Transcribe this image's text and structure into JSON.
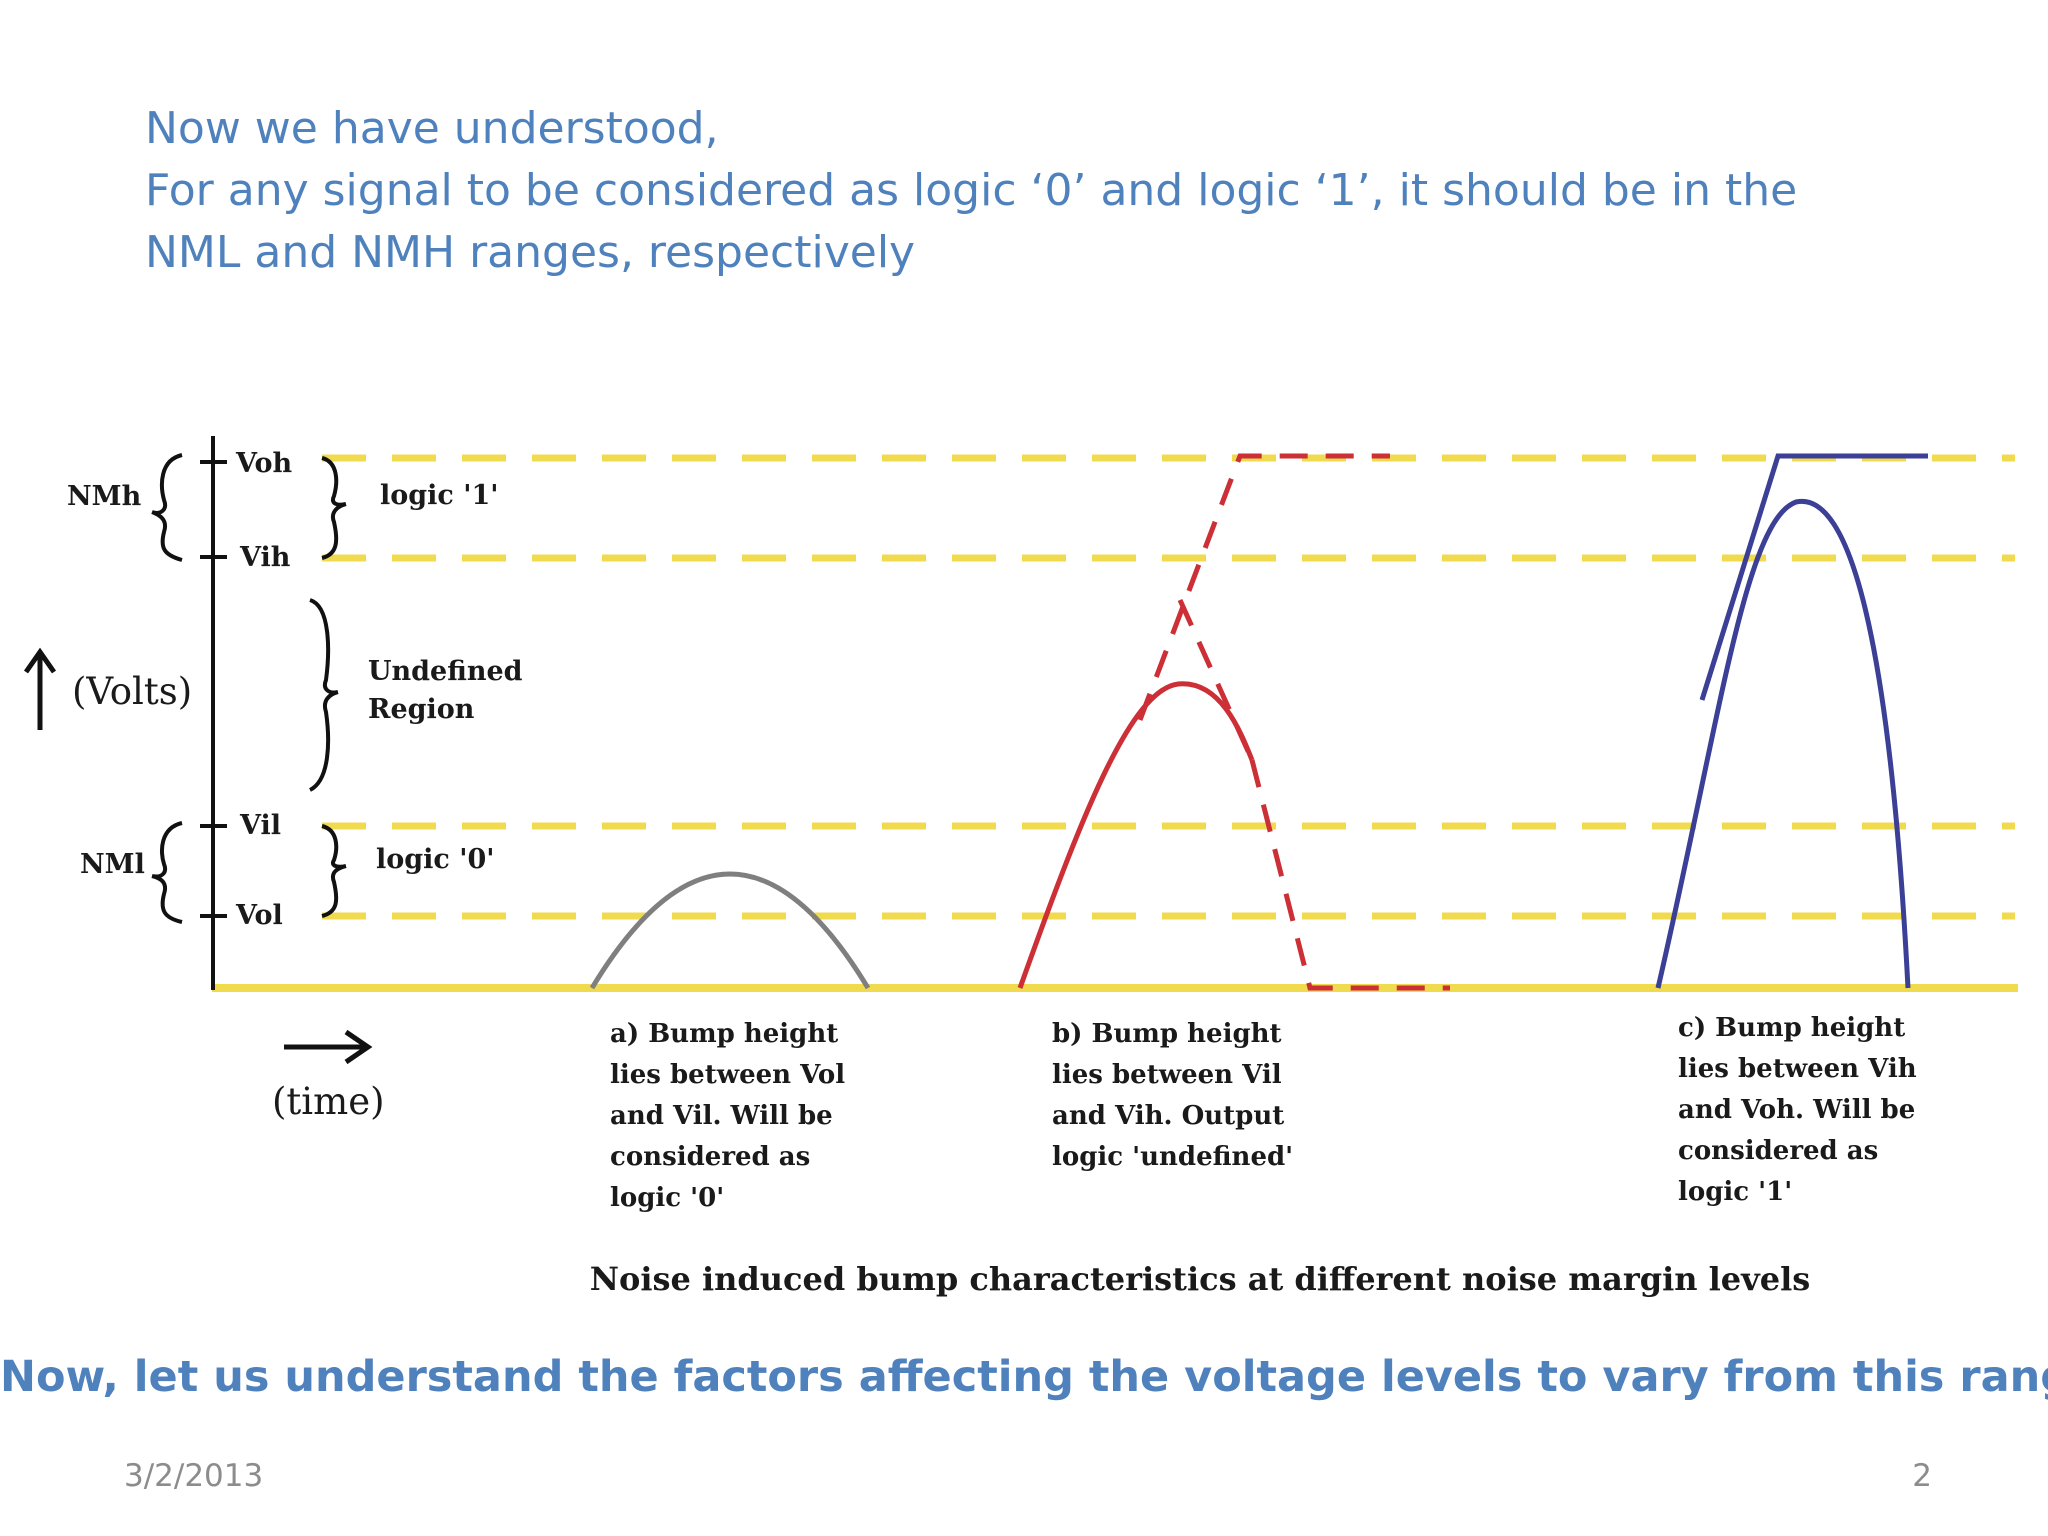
{
  "intro": {
    "line1": "Now we have understood,",
    "line2": "For any signal to be considered as logic ‘0’ and logic ‘1’, it should be in the",
    "line3": "NML and NMH ranges, respectively"
  },
  "diagram": {
    "axis_labels": {
      "volts": "(Volts)",
      "time": "(time)"
    },
    "level_labels": {
      "voh": "Voh",
      "vih": "Vih",
      "vil": "Vil",
      "vol": "Vol"
    },
    "margin_labels": {
      "nmh": "NMh",
      "nml": "NMl"
    },
    "region_labels": {
      "logic1": "logic '1'",
      "undefined_line1": "Undefined",
      "undefined_line2": "Region",
      "logic0": "logic '0'"
    },
    "captions": {
      "a": [
        "a) Bump height",
        "lies between Vol",
        "and Vil. Will be",
        "considered as",
        "logic '0'"
      ],
      "b": [
        "b) Bump height",
        "lies between Vil",
        "and Vih. Output",
        "logic 'undefined'"
      ],
      "c": [
        "c) Bump height",
        "lies between Vih",
        "and Voh. Will be",
        "considered as",
        "logic '1'"
      ]
    },
    "title": "Noise induced bump characteristics at different noise margin levels",
    "colors": {
      "level_lines": "#f0da4e",
      "bump_a": "#7f7f7f",
      "bump_b": "#cc2f36",
      "bump_c": "#3b3f95",
      "axis": "#111111"
    }
  },
  "footer": {
    "main": "Now, let us understand the factors affecting the voltage levels to vary from this range",
    "date": "3/2/2013",
    "page": "2"
  }
}
